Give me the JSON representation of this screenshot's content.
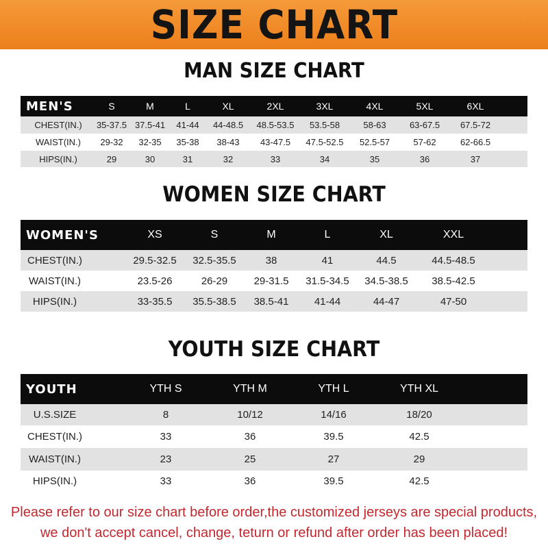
{
  "title": "SIZE CHART",
  "colors": {
    "banner": "#ef8a24",
    "header_row": "#0c0c0c",
    "stripe": "#e2e2e2",
    "note": "#c2282e"
  },
  "men": {
    "title": "MAN SIZE CHART",
    "corner": "MEN'S",
    "sizes": [
      "S",
      "M",
      "L",
      "XL",
      "2XL",
      "3XL",
      "4XL",
      "5XL",
      "6XL"
    ],
    "rows": [
      {
        "label": "CHEST(IN.)",
        "values": [
          "35-37.5",
          "37.5-41",
          "41-44",
          "44-48.5",
          "48.5-53.5",
          "53.5-58",
          "58-63",
          "63-67.5",
          "67.5-72"
        ]
      },
      {
        "label": "WAIST(IN.)",
        "values": [
          "29-32",
          "32-35",
          "35-38",
          "38-43",
          "43-47.5",
          "47.5-52.5",
          "52.5-57",
          "57-62",
          "62-66.5"
        ]
      },
      {
        "label": "HIPS(IN.)",
        "values": [
          "29",
          "30",
          "31",
          "32",
          "33",
          "34",
          "35",
          "36",
          "37"
        ]
      }
    ]
  },
  "women": {
    "title": "WOMEN SIZE CHART",
    "corner": "WOMEN'S",
    "sizes": [
      "XS",
      "S",
      "M",
      "L",
      "XL",
      "XXL"
    ],
    "rows": [
      {
        "label": "CHEST(IN.)",
        "values": [
          "29.5-32.5",
          "32.5-35.5",
          "38",
          "41",
          "44.5",
          "44.5-48.5"
        ]
      },
      {
        "label": "WAIST(IN.)",
        "values": [
          "23.5-26",
          "26-29",
          "29-31.5",
          "31.5-34.5",
          "34.5-38.5",
          "38.5-42.5"
        ]
      },
      {
        "label": "HIPS(IN.)",
        "values": [
          "33-35.5",
          "35.5-38.5",
          "38.5-41",
          "41-44",
          "44-47",
          "47-50"
        ]
      }
    ]
  },
  "youth": {
    "title": "YOUTH SIZE CHART",
    "corner": "YOUTH",
    "sizes": [
      "YTH S",
      "YTH M",
      "YTH L",
      "YTH XL"
    ],
    "rows": [
      {
        "label": "U.S.SIZE",
        "values": [
          "8",
          "10/12",
          "14/16",
          "18/20"
        ]
      },
      {
        "label": "CHEST(IN.)",
        "values": [
          "33",
          "36",
          "39.5",
          "42.5"
        ]
      },
      {
        "label": "WAIST(IN.)",
        "values": [
          "23",
          "25",
          "27",
          "29"
        ]
      },
      {
        "label": "HIPS(IN.)",
        "values": [
          "33",
          "36",
          "39.5",
          "42.5"
        ]
      }
    ]
  },
  "note": {
    "line1": "Please refer to our size chart before order,the customized jerseys are special products,",
    "line2": "we don't accept cancel, change, teturn or refund after order has been placed!"
  }
}
